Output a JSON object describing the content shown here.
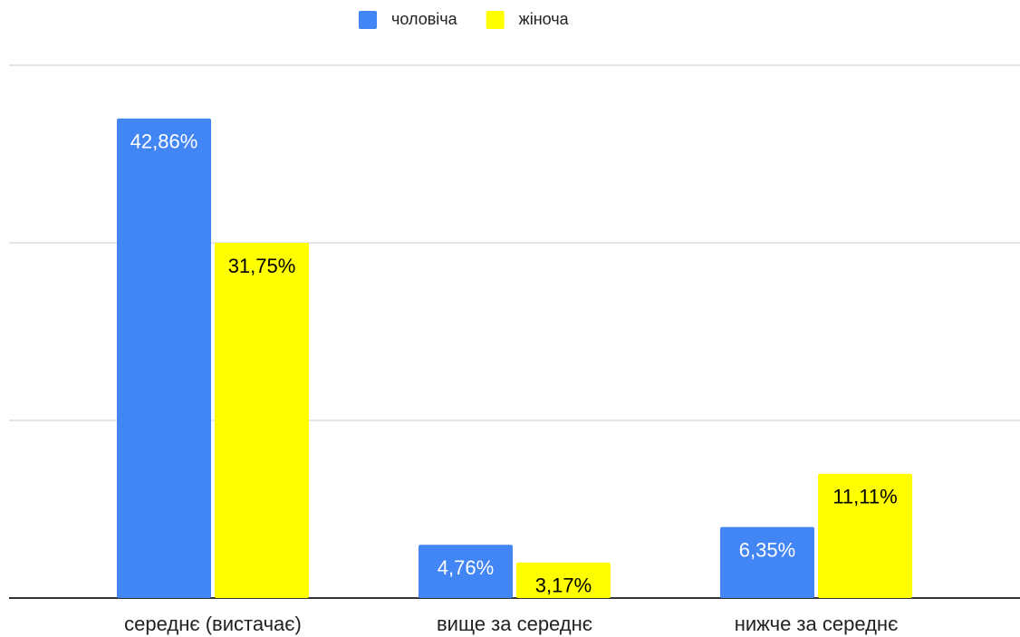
{
  "chart_data": {
    "type": "bar",
    "categories": [
      "середнє (вистачає)",
      "вище за середнє",
      "нижче за середнє"
    ],
    "series": [
      {
        "name": "чоловіча",
        "color": "#4285f4",
        "label_color": "#ffffff",
        "values": [
          42.86,
          4.76,
          6.35
        ],
        "value_labels": [
          "42,86%",
          "4,76%",
          "6,35%"
        ]
      },
      {
        "name": "жіноча",
        "color": "#ffff00",
        "label_color": "#000000",
        "values": [
          31.75,
          3.17,
          11.11
        ],
        "value_labels": [
          "31,75%",
          "3,17%",
          "11,11%"
        ]
      }
    ],
    "ylim": [
      0,
      47.62
    ],
    "yticks": [
      0,
      15.87,
      31.75,
      47.62
    ],
    "grid": true,
    "legend": "top"
  }
}
